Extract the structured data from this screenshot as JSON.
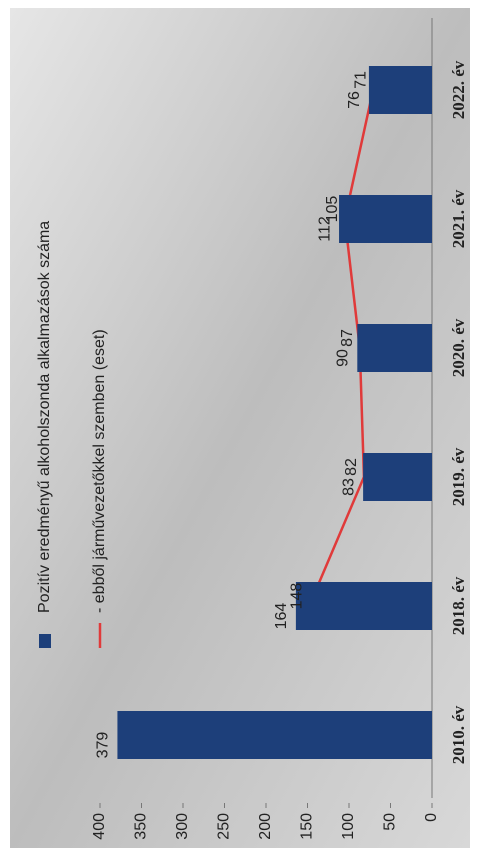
{
  "chart_data": {
    "type": "bar",
    "categories": [
      "2010. év",
      "2018. év",
      "2019. év",
      "2020. év",
      "2021. év",
      "2022. év"
    ],
    "series": [
      {
        "name": "Pozitív eredményű alkoholszonda alkalmazások száma",
        "type": "bar",
        "color": "#1d3f7a",
        "values": [
          379,
          164,
          83,
          90,
          112,
          76
        ]
      },
      {
        "name": "- ebből járművezetőkkel szemben (eset)",
        "type": "line",
        "color": "#e03a3a",
        "values": [
          null,
          148,
          82,
          87,
          105,
          71
        ]
      }
    ],
    "ylim": [
      0,
      400
    ],
    "yticks": [
      0,
      50,
      100,
      150,
      200,
      250,
      300,
      350,
      400
    ]
  }
}
